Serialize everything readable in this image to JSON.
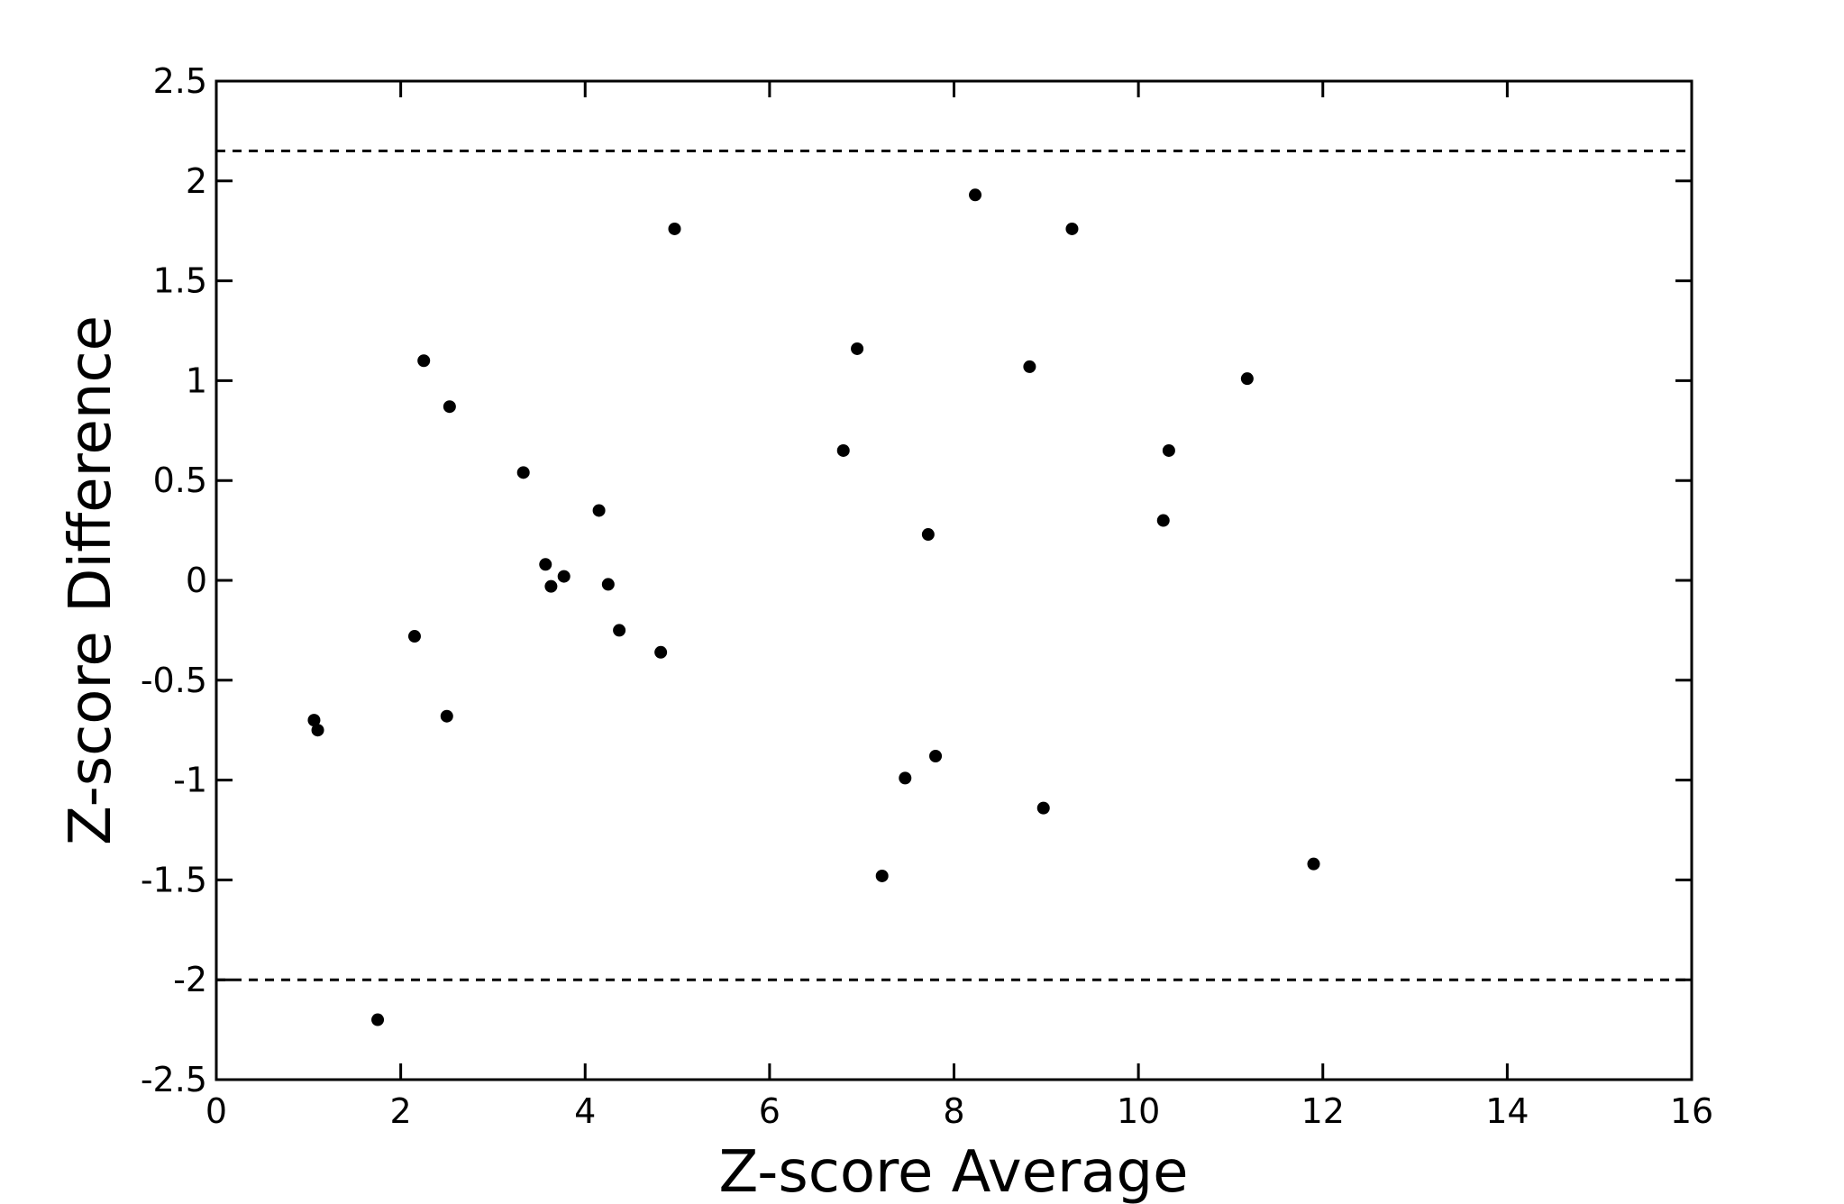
{
  "chart_data": {
    "type": "scatter",
    "title": "",
    "xlabel": "Z-score Average",
    "ylabel": "Z-score Difference",
    "xlim": [
      0,
      16
    ],
    "ylim": [
      -2.5,
      2.5
    ],
    "x_ticks": [
      0,
      2,
      4,
      6,
      8,
      10,
      12,
      14,
      16
    ],
    "y_ticks": [
      2.5,
      2,
      1.5,
      1,
      0.5,
      0,
      -0.5,
      -1,
      -1.5,
      -2,
      -2.5
    ],
    "x_tick_labels": [
      "0",
      "2",
      "4",
      "6",
      "8",
      "10",
      "12",
      "14",
      "16"
    ],
    "y_tick_labels": [
      "2.5",
      "2",
      "1.5",
      "1",
      "0.5",
      "0",
      "-0.5",
      "-1",
      "-1.5",
      "-2",
      "-2.5"
    ],
    "grid": false,
    "reference_lines": [
      {
        "y": 2.15,
        "style": "dashed"
      },
      {
        "y": -2.0,
        "style": "dashed"
      }
    ],
    "points": [
      {
        "x": 1.06,
        "y": -0.7
      },
      {
        "x": 1.1,
        "y": -0.75
      },
      {
        "x": 1.75,
        "y": -2.2
      },
      {
        "x": 2.15,
        "y": -0.28
      },
      {
        "x": 2.25,
        "y": 1.1
      },
      {
        "x": 2.5,
        "y": -0.68
      },
      {
        "x": 2.53,
        "y": 0.87
      },
      {
        "x": 3.33,
        "y": 0.54
      },
      {
        "x": 3.57,
        "y": 0.08
      },
      {
        "x": 3.63,
        "y": -0.03
      },
      {
        "x": 3.77,
        "y": 0.02
      },
      {
        "x": 4.15,
        "y": 0.35
      },
      {
        "x": 4.25,
        "y": -0.02
      },
      {
        "x": 4.37,
        "y": -0.25
      },
      {
        "x": 4.82,
        "y": -0.36
      },
      {
        "x": 4.97,
        "y": 1.76
      },
      {
        "x": 6.8,
        "y": 0.65
      },
      {
        "x": 6.95,
        "y": 1.16
      },
      {
        "x": 7.22,
        "y": -1.48
      },
      {
        "x": 7.47,
        "y": -0.99
      },
      {
        "x": 7.72,
        "y": 0.23
      },
      {
        "x": 7.8,
        "y": -0.88
      },
      {
        "x": 8.23,
        "y": 1.93
      },
      {
        "x": 8.82,
        "y": 1.07
      },
      {
        "x": 8.97,
        "y": -1.14
      },
      {
        "x": 9.28,
        "y": 1.76
      },
      {
        "x": 10.27,
        "y": 0.3
      },
      {
        "x": 10.33,
        "y": 0.65
      },
      {
        "x": 11.18,
        "y": 1.01
      },
      {
        "x": 11.9,
        "y": -1.42
      }
    ]
  }
}
